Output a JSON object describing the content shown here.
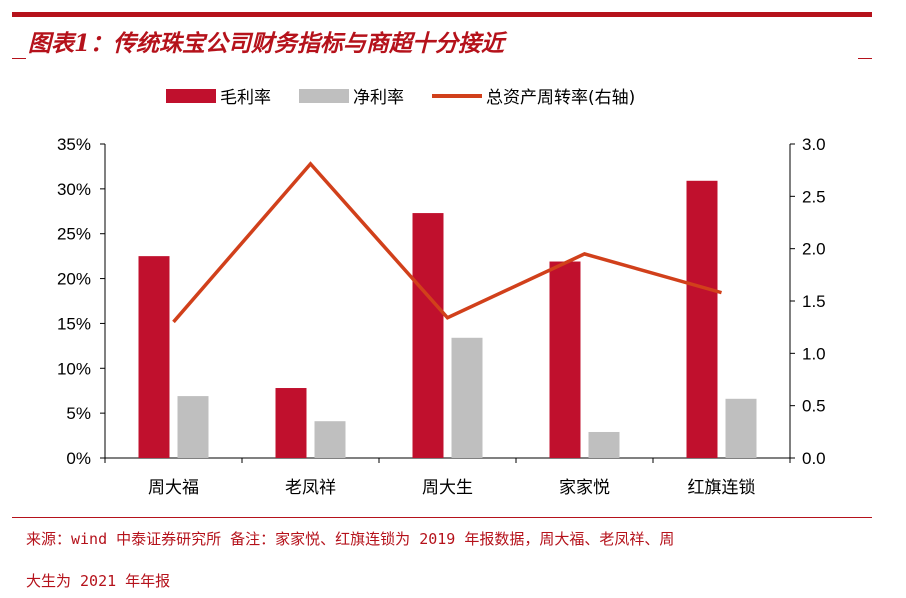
{
  "title": "图表1：传统珠宝公司财务指标与商超十分接近",
  "chart_data": {
    "type": "bar",
    "categories": [
      "周大福",
      "老凤祥",
      "周大生",
      "家家悦",
      "红旗连锁"
    ],
    "series": [
      {
        "name": "毛利率",
        "type": "bar",
        "axis": "left",
        "color": "#c0102d",
        "values": [
          22.5,
          7.8,
          27.3,
          21.9,
          30.9
        ]
      },
      {
        "name": "净利率",
        "type": "bar",
        "axis": "left",
        "color": "#bfbfbf",
        "values": [
          6.9,
          4.1,
          13.4,
          2.9,
          6.6
        ]
      },
      {
        "name": "总资产周转率(右轴)",
        "type": "line",
        "axis": "right",
        "color": "#d1401b",
        "values": [
          1.3,
          2.81,
          1.34,
          1.95,
          1.58
        ]
      }
    ],
    "ylim": [
      0,
      35
    ],
    "y2lim": [
      0,
      3.0
    ],
    "yticks": [
      "0%",
      "5%",
      "10%",
      "15%",
      "20%",
      "25%",
      "30%",
      "35%"
    ],
    "y2ticks": [
      "0.0",
      "0.5",
      "1.0",
      "1.5",
      "2.0",
      "2.5",
      "3.0"
    ],
    "legend": "top",
    "grid": false
  },
  "footer": {
    "line1": "来源：wind 中泰证券研究所  备注：家家悦、红旗连锁为 2019 年报数据，周大福、老凤祥、周",
    "line2": "大生为 2021 年年报"
  }
}
